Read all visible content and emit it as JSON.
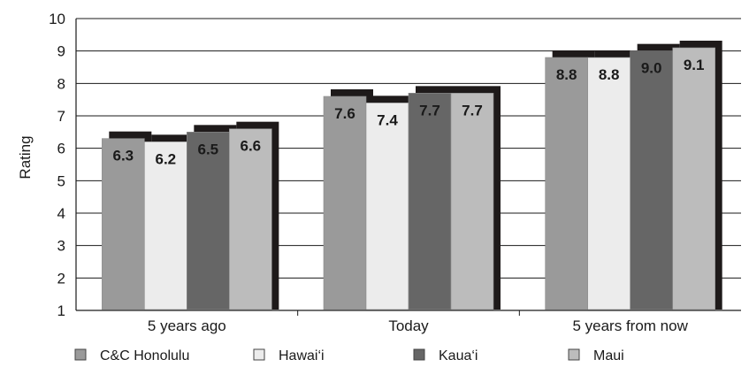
{
  "chart_data": {
    "type": "bar",
    "ylabel": "Rating",
    "xlabel": "",
    "ylim": [
      1,
      10
    ],
    "yticks": [
      1,
      2,
      3,
      4,
      5,
      6,
      7,
      8,
      9,
      10
    ],
    "categories": [
      "5 years ago",
      "Today",
      "5 years from now"
    ],
    "series": [
      {
        "name": "C&C Honolulu",
        "color": "#9a9a9a",
        "values": [
          6.3,
          7.6,
          8.8
        ]
      },
      {
        "name": "Hawai‘i",
        "color": "#ececec",
        "values": [
          6.2,
          7.4,
          8.8
        ]
      },
      {
        "name": "Kaua‘i",
        "color": "#666666",
        "values": [
          6.5,
          7.7,
          9.0
        ]
      },
      {
        "name": "Maui",
        "color": "#bcbcbc",
        "values": [
          6.6,
          7.7,
          9.1
        ]
      }
    ],
    "data_labels": [
      [
        "6.3",
        "7.6",
        "8.8"
      ],
      [
        "6.2",
        "7.4",
        "8.8"
      ],
      [
        "6.5",
        "7.7",
        "9.0"
      ],
      [
        "6.6",
        "7.7",
        "9.1"
      ]
    ],
    "grid": true,
    "legend_position": "bottom"
  }
}
